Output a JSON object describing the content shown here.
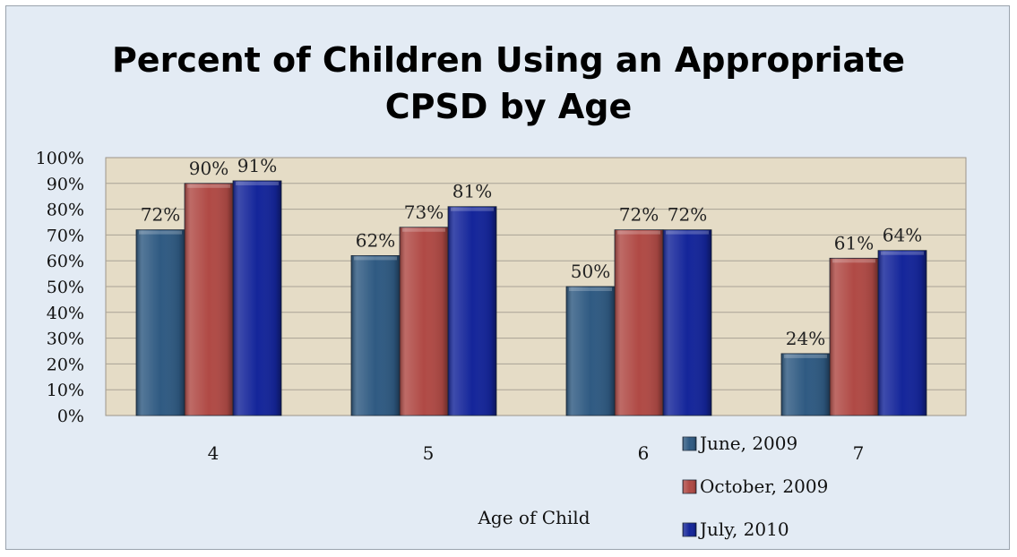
{
  "chart_data": {
    "type": "bar",
    "title_lines": [
      "Percent of Children Using an Appropriate",
      "CPSD by Age"
    ],
    "xlabel": "Age of Child",
    "ylabel": "",
    "categories": [
      "4",
      "5",
      "6",
      "7"
    ],
    "series": [
      {
        "name": "June, 2009",
        "color": "#2f5a82",
        "values": [
          72,
          62,
          50,
          24
        ]
      },
      {
        "name": "October, 2009",
        "color": "#b04a45",
        "values": [
          90,
          73,
          72,
          61
        ]
      },
      {
        "name": "July, 2010",
        "color": "#14259a",
        "values": [
          91,
          81,
          72,
          64
        ]
      }
    ],
    "data_labels": [
      [
        "72%",
        "62%",
        "50%",
        "24%"
      ],
      [
        "90%",
        "73%",
        "72%",
        "61%"
      ],
      [
        "91%",
        "81%",
        "72%",
        "64%"
      ]
    ],
    "yticks": [
      "0%",
      "10%",
      "20%",
      "30%",
      "40%",
      "50%",
      "60%",
      "70%",
      "80%",
      "90%",
      "100%"
    ],
    "ylim": [
      0,
      100
    ],
    "grid": true,
    "plot_background": "#e5dcc6",
    "chart_background": "#e3ebf4",
    "legend_position": "bottom-right"
  }
}
